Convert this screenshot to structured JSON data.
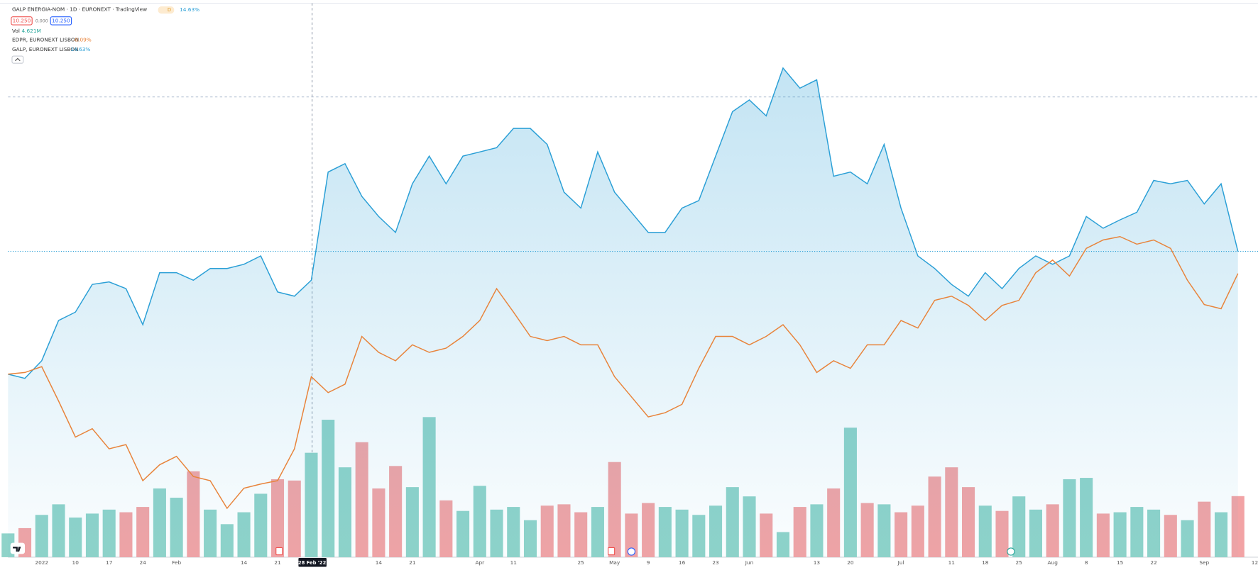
{
  "chart_data": {
    "type": "line",
    "title": "GALP ENERGIA-NOM · 1D · EURONEXT · TradingView",
    "badge": "D",
    "change": "14.63%",
    "bid": "10.250",
    "spread": "0.000",
    "ask": "10.250",
    "crosshair_label": "28 Feb '22",
    "categories": [
      null,
      null,
      "2022",
      null,
      "10",
      null,
      "17",
      null,
      "24",
      null,
      "Feb",
      null,
      null,
      null,
      "14",
      null,
      "21",
      null,
      null,
      null,
      null,
      null,
      "14",
      null,
      "21",
      null,
      null,
      null,
      "Apr",
      null,
      "11",
      null,
      null,
      null,
      "25",
      null,
      "May",
      null,
      "9",
      null,
      "16",
      null,
      "23",
      null,
      "Jun",
      null,
      null,
      null,
      "13",
      null,
      "20",
      null,
      null,
      "Jul",
      null,
      null,
      "11",
      null,
      "18",
      null,
      "25",
      null,
      "Aug",
      null,
      "8",
      null,
      "15",
      null,
      "22",
      null,
      null,
      "Sep",
      null,
      null,
      "12"
    ],
    "series": [
      {
        "name": "EDPR, EURONEXT LISBON",
        "status": "-0.09%",
        "color": "#e8833a",
        "values": [
          0,
          0.2,
          0.9,
          -3.2,
          -7.5,
          -6.5,
          -8.9,
          -8.4,
          -12.7,
          -10.8,
          -9.8,
          -12.2,
          -12.7,
          -16.0,
          -13.6,
          -13.1,
          -12.7,
          -8.9,
          -0.3,
          -2.2,
          -1.2,
          4.5,
          2.6,
          1.6,
          3.5,
          2.6,
          3.1,
          4.5,
          6.4,
          10.2,
          7.4,
          4.5,
          4.0,
          4.5,
          3.5,
          3.5,
          -0.3,
          -2.7,
          -5.1,
          -4.6,
          -3.6,
          0.7,
          4.5,
          4.5,
          3.5,
          4.5,
          5.9,
          3.5,
          0.2,
          1.6,
          0.7,
          3.5,
          3.5,
          6.4,
          5.5,
          8.8,
          9.3,
          8.2,
          6.4,
          8.2,
          8.8,
          12.1,
          13.6,
          11.7,
          15.0,
          16.0,
          16.4,
          15.5,
          16.0,
          15.0,
          11.2,
          8.3,
          7.8,
          12.0,
          null
        ]
      },
      {
        "name": "GALP, EURONEXT LISBON",
        "status": "14.63%",
        "color": "#2a9fd6",
        "area": true,
        "values": [
          0,
          -0.5,
          1.6,
          6.4,
          7.4,
          10.7,
          11.0,
          10.2,
          5.9,
          12.1,
          12.1,
          11.2,
          12.6,
          12.6,
          13.1,
          14.1,
          9.8,
          9.3,
          11.2,
          24.1,
          25.1,
          21.2,
          18.8,
          16.9,
          22.7,
          26.0,
          22.7,
          26.0,
          26.5,
          27.0,
          29.3,
          29.3,
          27.4,
          21.7,
          19.8,
          26.5,
          21.7,
          19.3,
          16.9,
          16.9,
          19.8,
          20.7,
          26.0,
          31.3,
          32.7,
          30.8,
          36.5,
          34.1,
          35.1,
          23.6,
          24.1,
          22.7,
          27.4,
          19.8,
          14.1,
          12.6,
          10.7,
          9.3,
          12.1,
          10.2,
          12.6,
          14.1,
          13.1,
          14.1,
          18.8,
          17.4,
          18.4,
          19.3,
          23.1,
          22.7,
          23.1,
          20.3,
          22.7,
          14.63,
          null
        ]
      }
    ],
    "volume": {
      "name": "Vol",
      "status": "4.621M",
      "up_color": "#8fd3c9",
      "down_color": "#f2a3a5",
      "values": [
        1.8,
        2.2,
        3.2,
        4.0,
        3.0,
        3.3,
        3.6,
        3.4,
        3.8,
        5.2,
        4.5,
        6.5,
        3.6,
        2.5,
        3.4,
        4.8,
        5.9,
        5.8,
        7.9,
        10.4,
        6.8,
        8.7,
        5.2,
        6.9,
        5.3,
        10.6,
        4.3,
        3.5,
        5.4,
        3.6,
        3.8,
        2.8,
        3.9,
        4.0,
        3.4,
        3.8,
        7.2,
        3.3,
        4.1,
        3.8,
        3.6,
        3.2,
        3.9,
        5.3,
        4.6,
        3.3,
        1.9,
        3.8,
        4.0,
        5.2,
        9.8,
        4.1,
        4.0,
        3.4,
        3.9,
        6.1,
        6.8,
        5.3,
        3.9,
        3.5,
        4.6,
        3.6,
        4.0,
        5.9,
        6.0,
        3.3,
        3.4,
        3.8,
        3.6,
        3.2,
        2.8,
        4.2,
        3.4,
        4.621,
        null
      ]
    }
  }
}
